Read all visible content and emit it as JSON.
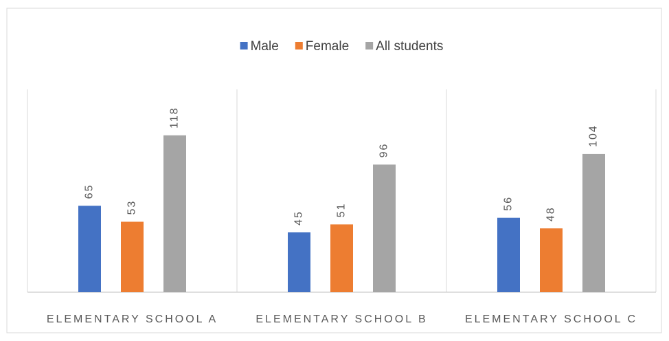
{
  "chart_data": {
    "type": "bar",
    "categories": [
      "ELEMENTARY SCHOOL A",
      "ELEMENTARY SCHOOL B",
      "ELEMENTARY SCHOOL C"
    ],
    "series": [
      {
        "name": "Male",
        "color": "#4472c4",
        "values": [
          65,
          45,
          56
        ]
      },
      {
        "name": "Female",
        "color": "#ed7d31",
        "values": [
          53,
          51,
          48
        ]
      },
      {
        "name": "All students",
        "color": "#a5a5a5",
        "values": [
          118,
          96,
          104
        ]
      }
    ],
    "ylim": [
      0,
      150
    ],
    "legend": "top"
  }
}
